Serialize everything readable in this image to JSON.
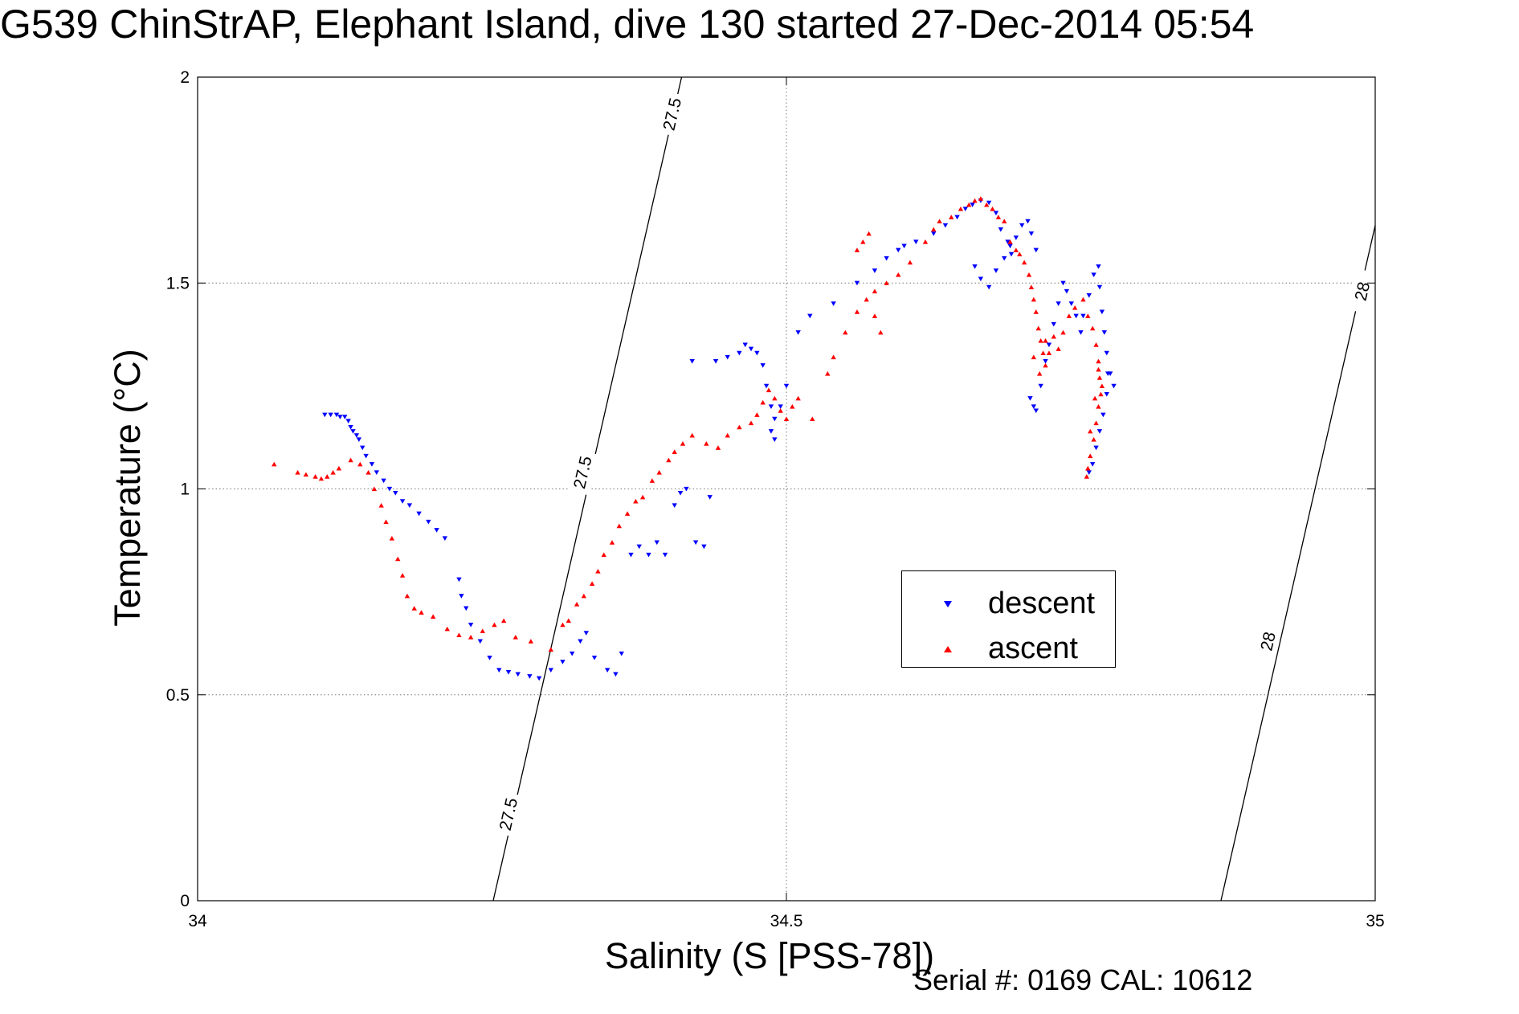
{
  "title": "G539 ChinStrAP, Elephant Island, dive 130 started 27-Dec-2014 05:54",
  "footer": "Serial #: 0169 CAL: 10612",
  "colors": {
    "descent": "#0000ff",
    "ascent": "#ff0000"
  },
  "chart_data": {
    "type": "scatter",
    "title": "G539 ChinStrAP, Elephant Island, dive 130 started 27-Dec-2014 05:54",
    "xlabel": "Salinity (S [PSS-78])",
    "ylabel": "Temperature (°C)",
    "xlim": [
      34,
      35
    ],
    "ylim": [
      0,
      2
    ],
    "xticks": [
      "34",
      "34.5",
      "35"
    ],
    "yticks": [
      "0",
      "0.5",
      "1",
      "1.5",
      "2"
    ],
    "grid": true,
    "legend_position": "center-right",
    "legend": [
      "descent",
      "ascent"
    ],
    "isopycnals": [
      {
        "label": "27.5",
        "points": [
          [
            34.251,
            0
          ],
          [
            34.411,
            2
          ]
        ],
        "labels_at": [
          [
            34.264,
            0.21
          ],
          [
            34.327,
            1.04
          ],
          [
            34.403,
            1.91
          ]
        ]
      },
      {
        "label": "28",
        "points": [
          [
            34.869,
            0
          ],
          [
            35.0,
            1.64
          ]
        ],
        "labels_at": [
          [
            34.909,
            0.63
          ],
          [
            34.989,
            1.48
          ]
        ]
      }
    ],
    "series": [
      {
        "name": "descent",
        "marker": "triangle-down",
        "color": "#0000ff",
        "points": [
          [
            34.108,
            1.18
          ],
          [
            34.113,
            1.18
          ],
          [
            34.118,
            1.18
          ],
          [
            34.121,
            1.175
          ],
          [
            34.125,
            1.175
          ],
          [
            34.128,
            1.165
          ],
          [
            34.13,
            1.15
          ],
          [
            34.132,
            1.14
          ],
          [
            34.135,
            1.13
          ],
          [
            34.137,
            1.12
          ],
          [
            34.14,
            1.1
          ],
          [
            34.143,
            1.08
          ],
          [
            34.148,
            1.06
          ],
          [
            34.152,
            1.04
          ],
          [
            34.158,
            1.02
          ],
          [
            34.163,
            1.0
          ],
          [
            34.168,
            0.99
          ],
          [
            34.174,
            0.97
          ],
          [
            34.18,
            0.96
          ],
          [
            34.188,
            0.94
          ],
          [
            34.196,
            0.92
          ],
          [
            34.203,
            0.9
          ],
          [
            34.21,
            0.88
          ],
          [
            34.222,
            0.78
          ],
          [
            34.224,
            0.74
          ],
          [
            34.228,
            0.71
          ],
          [
            34.232,
            0.67
          ],
          [
            34.24,
            0.63
          ],
          [
            34.248,
            0.59
          ],
          [
            34.256,
            0.56
          ],
          [
            34.264,
            0.555
          ],
          [
            34.272,
            0.55
          ],
          [
            34.282,
            0.545
          ],
          [
            34.29,
            0.54
          ],
          [
            34.3,
            0.56
          ],
          [
            34.31,
            0.58
          ],
          [
            34.318,
            0.6
          ],
          [
            34.325,
            0.63
          ],
          [
            34.33,
            0.65
          ],
          [
            34.337,
            0.59
          ],
          [
            34.348,
            0.56
          ],
          [
            34.355,
            0.55
          ],
          [
            34.36,
            0.6
          ],
          [
            34.368,
            0.84
          ],
          [
            34.375,
            0.86
          ],
          [
            34.383,
            0.84
          ],
          [
            34.39,
            0.87
          ],
          [
            34.397,
            0.84
          ],
          [
            34.405,
            0.96
          ],
          [
            34.41,
            0.99
          ],
          [
            34.415,
            1.0
          ],
          [
            34.423,
            0.87
          ],
          [
            34.43,
            0.86
          ],
          [
            34.435,
            0.98
          ],
          [
            34.42,
            1.31
          ],
          [
            34.44,
            1.31
          ],
          [
            34.45,
            1.32
          ],
          [
            34.46,
            1.33
          ],
          [
            34.465,
            1.35
          ],
          [
            34.47,
            1.34
          ],
          [
            34.475,
            1.33
          ],
          [
            34.48,
            1.3
          ],
          [
            34.483,
            1.25
          ],
          [
            34.487,
            1.2
          ],
          [
            34.49,
            1.17
          ],
          [
            34.487,
            1.14
          ],
          [
            34.49,
            1.12
          ],
          [
            34.495,
            1.2
          ],
          [
            34.5,
            1.25
          ],
          [
            34.51,
            1.38
          ],
          [
            34.52,
            1.42
          ],
          [
            34.54,
            1.45
          ],
          [
            34.56,
            1.5
          ],
          [
            34.575,
            1.53
          ],
          [
            34.585,
            1.56
          ],
          [
            34.595,
            1.58
          ],
          [
            34.6,
            1.59
          ],
          [
            34.61,
            1.6
          ],
          [
            34.625,
            1.62
          ],
          [
            34.635,
            1.64
          ],
          [
            34.645,
            1.66
          ],
          [
            34.652,
            1.68
          ],
          [
            34.658,
            1.69
          ],
          [
            34.665,
            1.7
          ],
          [
            34.672,
            1.695
          ],
          [
            34.678,
            1.67
          ],
          [
            34.682,
            1.63
          ],
          [
            34.688,
            1.6
          ],
          [
            34.691,
            1.57
          ],
          [
            34.66,
            1.54
          ],
          [
            34.665,
            1.51
          ],
          [
            34.672,
            1.49
          ],
          [
            34.678,
            1.53
          ],
          [
            34.685,
            1.56
          ],
          [
            34.69,
            1.59
          ],
          [
            34.695,
            1.61
          ],
          [
            34.7,
            1.64
          ],
          [
            34.705,
            1.65
          ],
          [
            34.708,
            1.62
          ],
          [
            34.712,
            1.58
          ],
          [
            34.707,
            1.22
          ],
          [
            34.71,
            1.2
          ],
          [
            34.712,
            1.19
          ],
          [
            34.716,
            1.25
          ],
          [
            34.72,
            1.31
          ],
          [
            34.723,
            1.35
          ],
          [
            34.727,
            1.4
          ],
          [
            34.731,
            1.45
          ],
          [
            34.735,
            1.5
          ],
          [
            34.738,
            1.48
          ],
          [
            34.742,
            1.45
          ],
          [
            34.746,
            1.42
          ],
          [
            34.75,
            1.38
          ],
          [
            34.752,
            1.42
          ],
          [
            34.757,
            1.47
          ],
          [
            34.761,
            1.52
          ],
          [
            34.765,
            1.54
          ],
          [
            34.766,
            1.49
          ],
          [
            34.768,
            1.43
          ],
          [
            34.77,
            1.38
          ],
          [
            34.772,
            1.33
          ],
          [
            34.773,
            1.28
          ],
          [
            34.772,
            1.23
          ],
          [
            34.769,
            1.18
          ],
          [
            34.766,
            1.14
          ],
          [
            34.763,
            1.1
          ],
          [
            34.76,
            1.06
          ],
          [
            34.757,
            1.04
          ],
          [
            34.775,
            1.28
          ],
          [
            34.778,
            1.25
          ]
        ]
      },
      {
        "name": "ascent",
        "marker": "triangle-up",
        "color": "#ff0000",
        "points": [
          [
            34.065,
            1.06
          ],
          [
            34.085,
            1.04
          ],
          [
            34.092,
            1.035
          ],
          [
            34.1,
            1.03
          ],
          [
            34.105,
            1.025
          ],
          [
            34.11,
            1.03
          ],
          [
            34.115,
            1.04
          ],
          [
            34.12,
            1.05
          ],
          [
            34.13,
            1.07
          ],
          [
            34.138,
            1.06
          ],
          [
            34.145,
            1.04
          ],
          [
            34.15,
            1.0
          ],
          [
            34.156,
            0.96
          ],
          [
            34.16,
            0.92
          ],
          [
            34.165,
            0.88
          ],
          [
            34.17,
            0.83
          ],
          [
            34.174,
            0.79
          ],
          [
            34.178,
            0.74
          ],
          [
            34.184,
            0.71
          ],
          [
            34.19,
            0.7
          ],
          [
            34.2,
            0.69
          ],
          [
            34.212,
            0.66
          ],
          [
            34.222,
            0.645
          ],
          [
            34.232,
            0.64
          ],
          [
            34.242,
            0.655
          ],
          [
            34.252,
            0.67
          ],
          [
            34.26,
            0.68
          ],
          [
            34.27,
            0.64
          ],
          [
            34.283,
            0.63
          ],
          [
            34.3,
            0.61
          ],
          [
            34.31,
            0.67
          ],
          [
            34.315,
            0.68
          ],
          [
            34.322,
            0.72
          ],
          [
            34.328,
            0.74
          ],
          [
            34.335,
            0.77
          ],
          [
            34.34,
            0.8
          ],
          [
            34.345,
            0.84
          ],
          [
            34.352,
            0.87
          ],
          [
            34.358,
            0.91
          ],
          [
            34.365,
            0.94
          ],
          [
            34.372,
            0.97
          ],
          [
            34.378,
            0.98
          ],
          [
            34.386,
            1.02
          ],
          [
            34.392,
            1.04
          ],
          [
            34.4,
            1.07
          ],
          [
            34.405,
            1.09
          ],
          [
            34.412,
            1.11
          ],
          [
            34.42,
            1.13
          ],
          [
            34.432,
            1.11
          ],
          [
            34.442,
            1.1
          ],
          [
            34.45,
            1.13
          ],
          [
            34.46,
            1.15
          ],
          [
            34.47,
            1.16
          ],
          [
            34.475,
            1.18
          ],
          [
            34.48,
            1.21
          ],
          [
            34.485,
            1.24
          ],
          [
            34.49,
            1.22
          ],
          [
            34.495,
            1.19
          ],
          [
            34.5,
            1.17
          ],
          [
            34.505,
            1.2
          ],
          [
            34.51,
            1.22
          ],
          [
            34.522,
            1.17
          ],
          [
            34.535,
            1.28
          ],
          [
            34.54,
            1.32
          ],
          [
            34.55,
            1.38
          ],
          [
            34.56,
            1.43
          ],
          [
            34.568,
            1.46
          ],
          [
            34.575,
            1.42
          ],
          [
            34.58,
            1.38
          ],
          [
            34.56,
            1.58
          ],
          [
            34.565,
            1.6
          ],
          [
            34.57,
            1.62
          ],
          [
            34.575,
            1.48
          ],
          [
            34.585,
            1.5
          ],
          [
            34.595,
            1.52
          ],
          [
            34.605,
            1.55
          ],
          [
            34.618,
            1.6
          ],
          [
            34.625,
            1.63
          ],
          [
            34.63,
            1.65
          ],
          [
            34.64,
            1.66
          ],
          [
            34.648,
            1.68
          ],
          [
            34.655,
            1.69
          ],
          [
            34.66,
            1.7
          ],
          [
            34.665,
            1.705
          ],
          [
            34.67,
            1.69
          ],
          [
            34.675,
            1.68
          ],
          [
            34.68,
            1.66
          ],
          [
            34.685,
            1.65
          ],
          [
            34.69,
            1.6
          ],
          [
            34.695,
            1.58
          ],
          [
            34.698,
            1.57
          ],
          [
            34.702,
            1.55
          ],
          [
            34.706,
            1.52
          ],
          [
            34.708,
            1.49
          ],
          [
            34.71,
            1.46
          ],
          [
            34.712,
            1.43
          ],
          [
            34.714,
            1.39
          ],
          [
            34.716,
            1.36
          ],
          [
            34.718,
            1.33
          ],
          [
            34.72,
            1.3
          ],
          [
            34.723,
            1.33
          ],
          [
            34.727,
            1.37
          ],
          [
            34.731,
            1.34
          ],
          [
            34.735,
            1.38
          ],
          [
            34.74,
            1.42
          ],
          [
            34.745,
            1.44
          ],
          [
            34.752,
            1.46
          ],
          [
            34.756,
            1.42
          ],
          [
            34.76,
            1.39
          ],
          [
            34.763,
            1.35
          ],
          [
            34.765,
            1.31
          ],
          [
            34.766,
            1.27
          ],
          [
            34.767,
            1.23
          ],
          [
            34.765,
            1.2
          ],
          [
            34.763,
            1.16
          ],
          [
            34.761,
            1.12
          ],
          [
            34.758,
            1.08
          ],
          [
            34.756,
            1.05
          ],
          [
            34.755,
            1.03
          ],
          [
            34.71,
            1.32
          ],
          [
            34.715,
            1.28
          ],
          [
            34.72,
            1.36
          ],
          [
            34.765,
            1.29
          ],
          [
            34.768,
            1.25
          ],
          [
            34.758,
            1.14
          ],
          [
            34.762,
            1.22
          ]
        ]
      }
    ]
  }
}
